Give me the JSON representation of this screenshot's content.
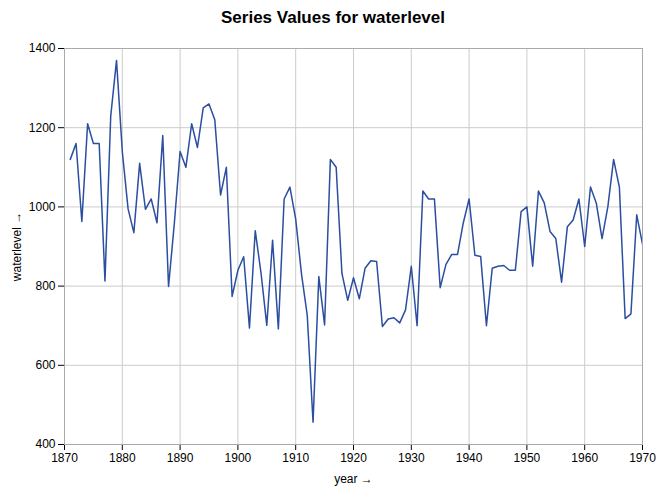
{
  "chart_data": {
    "type": "line",
    "title": "Series Values for waterlevel",
    "x_label": "year",
    "y_label": "waterlevel",
    "color": "#2b4ea0",
    "x": [
      1871,
      1872,
      1873,
      1874,
      1875,
      1876,
      1877,
      1878,
      1879,
      1880,
      1881,
      1882,
      1883,
      1884,
      1885,
      1886,
      1887,
      1888,
      1889,
      1890,
      1891,
      1892,
      1893,
      1894,
      1895,
      1896,
      1897,
      1898,
      1899,
      1900,
      1901,
      1902,
      1903,
      1904,
      1905,
      1906,
      1907,
      1908,
      1909,
      1910,
      1911,
      1912,
      1913,
      1914,
      1915,
      1916,
      1917,
      1918,
      1919,
      1920,
      1921,
      1922,
      1923,
      1924,
      1925,
      1926,
      1927,
      1928,
      1929,
      1930,
      1931,
      1932,
      1933,
      1934,
      1935,
      1936,
      1937,
      1938,
      1939,
      1940,
      1941,
      1942,
      1943,
      1944,
      1945,
      1946,
      1947,
      1948,
      1949,
      1950,
      1951,
      1952,
      1953,
      1954,
      1955,
      1956,
      1957,
      1958,
      1959,
      1960,
      1961,
      1962,
      1963,
      1964,
      1965,
      1966,
      1967,
      1968,
      1969,
      1970
    ],
    "values": [
      1120,
      1160,
      963,
      1210,
      1160,
      1160,
      813,
      1230,
      1370,
      1140,
      995,
      935,
      1110,
      994,
      1020,
      960,
      1180,
      799,
      958,
      1140,
      1100,
      1210,
      1150,
      1250,
      1260,
      1220,
      1030,
      1100,
      774,
      840,
      874,
      694,
      940,
      833,
      701,
      916,
      692,
      1020,
      1050,
      969,
      831,
      726,
      456,
      824,
      702,
      1120,
      1100,
      832,
      764,
      821,
      768,
      845,
      864,
      862,
      698,
      717,
      720,
      707,
      740,
      850,
      700,
      1040,
      1020,
      1020,
      796,
      855,
      880,
      880,
      960,
      1020,
      878,
      875,
      700,
      845,
      850,
      852,
      840,
      840,
      988,
      1000,
      850,
      1040,
      1010,
      938,
      920,
      810,
      950,
      967,
      1020,
      900,
      1050,
      1010,
      920,
      1000,
      1120,
      1050,
      718,
      730,
      980,
      906
    ],
    "xlim": [
      1870,
      1970
    ],
    "xticks": [
      1870,
      1880,
      1890,
      1900,
      1910,
      1920,
      1930,
      1940,
      1950,
      1960,
      1970
    ],
    "ylim": [
      400,
      1400
    ],
    "yticks": [
      400,
      600,
      800,
      1000,
      1200,
      1400
    ],
    "grid": true
  }
}
